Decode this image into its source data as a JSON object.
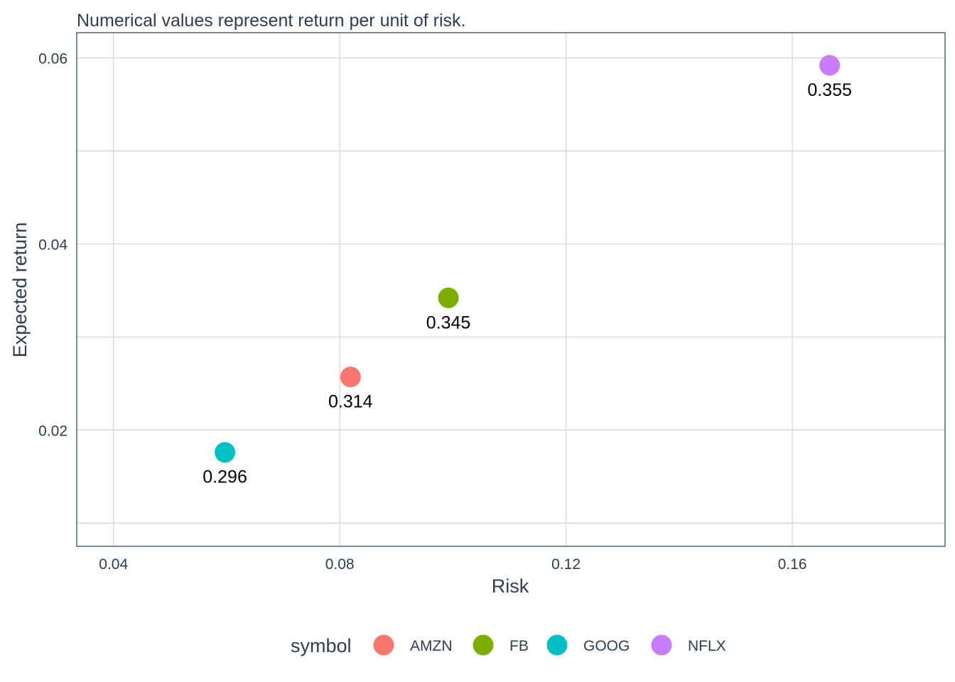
{
  "chart_data": {
    "type": "scatter",
    "subtitle": "Numerical values represent return per unit of risk.",
    "xlabel": "Risk",
    "ylabel": "Expected return",
    "xlim": [
      0.0335,
      0.187
    ],
    "ylim": [
      0.0075,
      0.0627
    ],
    "x_ticks": [
      0.04,
      0.08,
      0.12,
      0.16
    ],
    "x_tick_labels": [
      "0.04",
      "0.08",
      "0.12",
      "0.16"
    ],
    "y_ticks": [
      0.02,
      0.04,
      0.06
    ],
    "y_tick_labels": [
      "0.02",
      "0.04",
      "0.06"
    ],
    "y_minor_gridlines": [
      0.01,
      0.03,
      0.05
    ],
    "grid": true,
    "legend": {
      "title": "symbol",
      "position": "bottom"
    },
    "series": [
      {
        "name": "AMZN",
        "color": "#F8766D",
        "x": 0.0819,
        "y": 0.0257,
        "label": "0.314"
      },
      {
        "name": "FB",
        "color": "#7CAE00",
        "x": 0.0992,
        "y": 0.0342,
        "label": "0.345"
      },
      {
        "name": "GOOG",
        "color": "#00BFC4",
        "x": 0.0597,
        "y": 0.0176,
        "label": "0.296"
      },
      {
        "name": "NFLX",
        "color": "#C77CFF",
        "x": 0.1666,
        "y": 0.0592,
        "label": "0.355"
      }
    ]
  }
}
